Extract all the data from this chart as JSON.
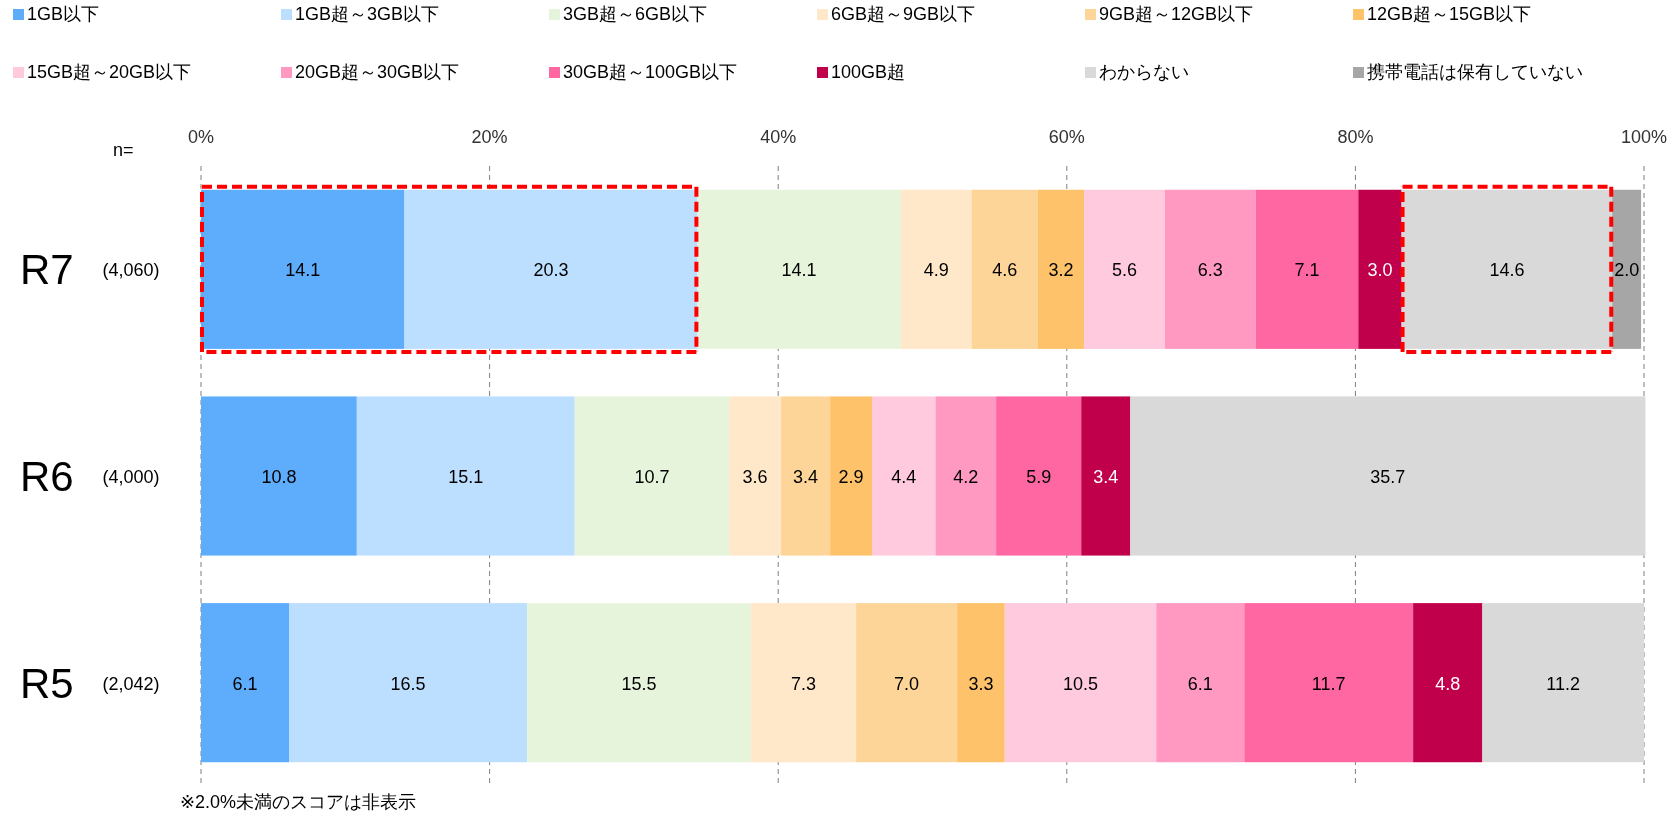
{
  "chart_data": {
    "type": "bar",
    "orientation": "horizontal",
    "stacked": true,
    "categories": [
      "R7",
      "R6",
      "R5"
    ],
    "xlim": [
      0,
      100
    ],
    "xticks": [
      {
        "value": 0,
        "label": "0%"
      },
      {
        "value": 20,
        "label": "20%"
      },
      {
        "value": 40,
        "label": "40%"
      },
      {
        "value": 60,
        "label": "60%"
      },
      {
        "value": 80,
        "label": "80%"
      },
      {
        "value": 100,
        "label": "100%"
      }
    ],
    "grid": "x",
    "legend": "top",
    "annotations": [
      "※2.0%未満のスコアは非表示",
      "n=",
      "(4,060)",
      "(4,000)",
      "(2,042)"
    ],
    "series": [
      {
        "name": "1GB以下",
        "color": "#5eadfd",
        "values": [
          14.1,
          10.8,
          6.1
        ],
        "value_labels": [
          "14.1",
          "10.8",
          "6.1"
        ]
      },
      {
        "name": "1GB超～3GB以下",
        "color": "#bddfff",
        "values": [
          20.3,
          15.1,
          16.5
        ],
        "value_labels": [
          "20.3",
          "15.1",
          "16.5"
        ]
      },
      {
        "name": "3GB超～6GB以下",
        "color": "#e7f4dc",
        "values": [
          14.1,
          10.7,
          15.5
        ],
        "value_labels": [
          "14.1",
          "10.7",
          "15.5"
        ]
      },
      {
        "name": "6GB超～9GB以下",
        "color": "#ffe8c9",
        "values": [
          4.9,
          3.6,
          7.3
        ],
        "value_labels": [
          "4.9",
          "3.6",
          "7.3"
        ]
      },
      {
        "name": "9GB超～12GB以下",
        "color": "#fdd598",
        "values": [
          4.6,
          3.4,
          7.0
        ],
        "value_labels": [
          "4.6",
          "3.4",
          "7.0"
        ]
      },
      {
        "name": "12GB超～15GB以下",
        "color": "#fdc26a",
        "values": [
          3.2,
          2.9,
          3.3
        ],
        "value_labels": [
          "3.2",
          "2.9",
          "3.3"
        ]
      },
      {
        "name": "15GB超～20GB以下",
        "color": "#ffcade",
        "values": [
          5.6,
          4.4,
          10.5
        ],
        "value_labels": [
          "5.6",
          "4.4",
          "10.5"
        ]
      },
      {
        "name": "20GB超～30GB以下",
        "color": "#ff99c2",
        "values": [
          6.3,
          4.2,
          6.1
        ],
        "value_labels": [
          "6.3",
          "4.2",
          "6.1"
        ]
      },
      {
        "name": "30GB超～100GB以下",
        "color": "#ff67a3",
        "values": [
          7.1,
          5.9,
          11.7
        ],
        "value_labels": [
          "7.1",
          "5.9",
          "11.7"
        ]
      },
      {
        "name": "100GB超",
        "color": "#c0004b",
        "values": [
          3.0,
          3.4,
          4.8
        ],
        "value_labels": [
          "3.0",
          "3.4",
          "4.8"
        ]
      },
      {
        "name": "わからない",
        "color": "#d9d9d9",
        "values": [
          14.6,
          35.7,
          11.2
        ],
        "value_labels": [
          "14.6",
          "35.7",
          "11.2"
        ]
      },
      {
        "name": "携帯電話は保有していない",
        "color": "#a6a6a6",
        "values": [
          2.0,
          null,
          null
        ],
        "value_labels": [
          "2.0",
          null,
          null
        ]
      }
    ]
  }
}
